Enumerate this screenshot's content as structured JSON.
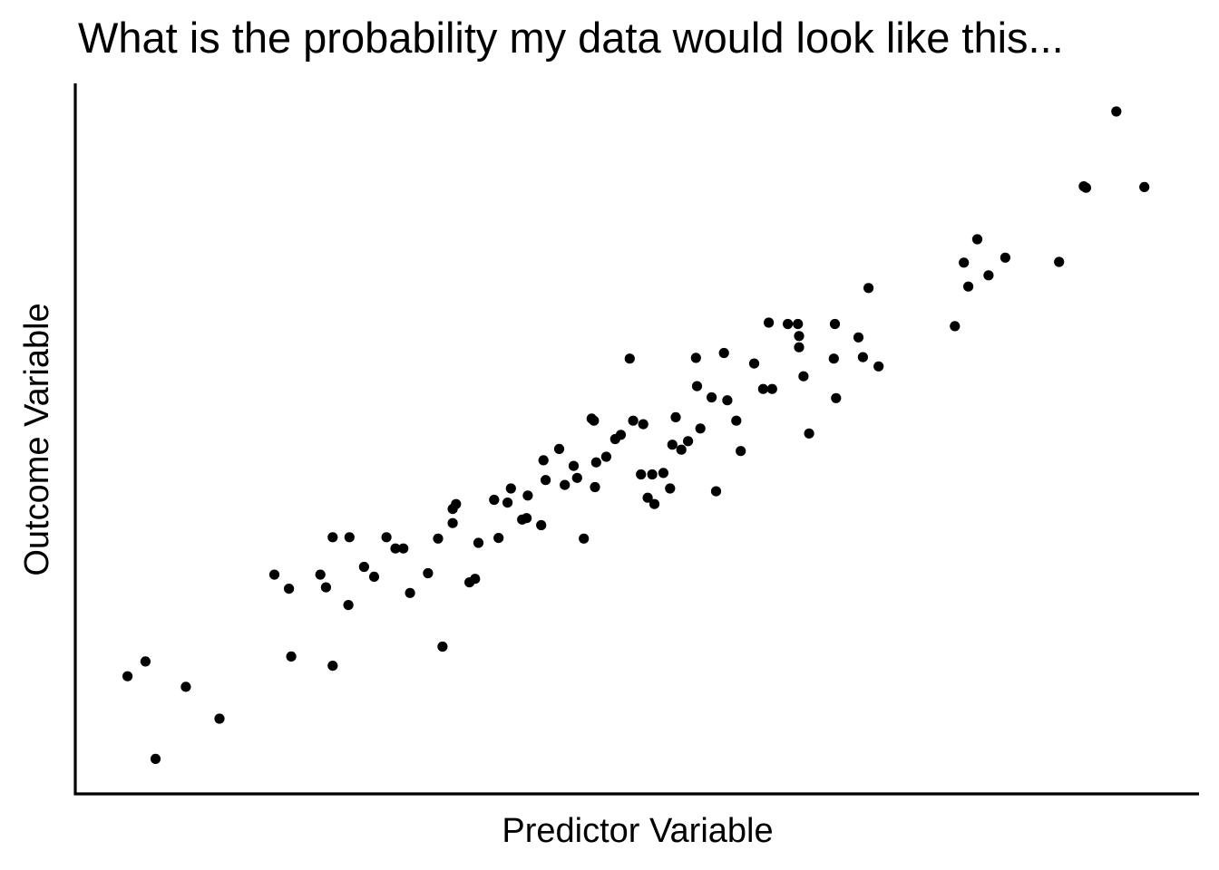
{
  "chart_data": {
    "type": "scatter",
    "title": "What is the probability my data would look like this...",
    "xlabel": "Predictor Variable",
    "ylabel": "Outcome Variable",
    "x_ticks_shown": false,
    "y_ticks_shown": false,
    "grid": false,
    "legend": "none",
    "point_color": "#000000",
    "axis_color": "#000000",
    "background": "#ffffff",
    "xlim": [
      0,
      100
    ],
    "ylim": [
      0,
      100
    ],
    "points": [
      {
        "x": 4.5,
        "y": 16.4
      },
      {
        "x": 6.1,
        "y": 18.5
      },
      {
        "x": 7.0,
        "y": 4.7
      },
      {
        "x": 9.7,
        "y": 14.9
      },
      {
        "x": 12.7,
        "y": 10.4
      },
      {
        "x": 17.6,
        "y": 30.8
      },
      {
        "x": 18.9,
        "y": 28.8
      },
      {
        "x": 19.1,
        "y": 19.2
      },
      {
        "x": 21.7,
        "y": 30.8
      },
      {
        "x": 22.2,
        "y": 29.0
      },
      {
        "x": 22.8,
        "y": 36.1
      },
      {
        "x": 22.8,
        "y": 17.9
      },
      {
        "x": 24.2,
        "y": 26.5
      },
      {
        "x": 24.3,
        "y": 36.1
      },
      {
        "x": 25.6,
        "y": 31.9
      },
      {
        "x": 26.5,
        "y": 30.5
      },
      {
        "x": 27.6,
        "y": 36.1
      },
      {
        "x": 28.4,
        "y": 34.5
      },
      {
        "x": 29.1,
        "y": 34.5
      },
      {
        "x": 29.7,
        "y": 28.2
      },
      {
        "x": 31.3,
        "y": 31.0
      },
      {
        "x": 32.2,
        "y": 35.9
      },
      {
        "x": 32.6,
        "y": 20.6
      },
      {
        "x": 33.5,
        "y": 40.1
      },
      {
        "x": 33.5,
        "y": 38.1
      },
      {
        "x": 33.8,
        "y": 40.8
      },
      {
        "x": 35.0,
        "y": 29.7
      },
      {
        "x": 35.5,
        "y": 30.2
      },
      {
        "x": 35.8,
        "y": 35.3
      },
      {
        "x": 37.2,
        "y": 41.4
      },
      {
        "x": 37.6,
        "y": 36.0
      },
      {
        "x": 38.4,
        "y": 41.0
      },
      {
        "x": 38.7,
        "y": 43.0
      },
      {
        "x": 39.7,
        "y": 38.6
      },
      {
        "x": 40.1,
        "y": 38.8
      },
      {
        "x": 40.2,
        "y": 42.0
      },
      {
        "x": 41.4,
        "y": 37.8
      },
      {
        "x": 41.6,
        "y": 47.0
      },
      {
        "x": 41.8,
        "y": 44.2
      },
      {
        "x": 43.0,
        "y": 48.6
      },
      {
        "x": 43.5,
        "y": 43.5
      },
      {
        "x": 44.3,
        "y": 46.2
      },
      {
        "x": 44.6,
        "y": 44.5
      },
      {
        "x": 45.2,
        "y": 35.9
      },
      {
        "x": 45.9,
        "y": 52.9
      },
      {
        "x": 46.1,
        "y": 52.6
      },
      {
        "x": 46.2,
        "y": 43.2
      },
      {
        "x": 46.3,
        "y": 46.7
      },
      {
        "x": 47.2,
        "y": 47.5
      },
      {
        "x": 48.0,
        "y": 50.0
      },
      {
        "x": 48.5,
        "y": 50.6
      },
      {
        "x": 49.3,
        "y": 61.4
      },
      {
        "x": 49.6,
        "y": 52.6
      },
      {
        "x": 50.3,
        "y": 45.0
      },
      {
        "x": 50.5,
        "y": 52.1
      },
      {
        "x": 50.9,
        "y": 41.7
      },
      {
        "x": 51.3,
        "y": 45.0
      },
      {
        "x": 51.5,
        "y": 40.8
      },
      {
        "x": 52.3,
        "y": 45.2
      },
      {
        "x": 52.9,
        "y": 43.0
      },
      {
        "x": 53.1,
        "y": 49.2
      },
      {
        "x": 53.4,
        "y": 53.1
      },
      {
        "x": 53.9,
        "y": 48.5
      },
      {
        "x": 54.5,
        "y": 49.7
      },
      {
        "x": 55.2,
        "y": 61.5
      },
      {
        "x": 55.3,
        "y": 57.5
      },
      {
        "x": 55.6,
        "y": 51.5
      },
      {
        "x": 56.6,
        "y": 55.9
      },
      {
        "x": 57.0,
        "y": 42.6
      },
      {
        "x": 57.7,
        "y": 62.2
      },
      {
        "x": 58.0,
        "y": 55.5
      },
      {
        "x": 58.8,
        "y": 52.6
      },
      {
        "x": 59.2,
        "y": 48.3
      },
      {
        "x": 60.4,
        "y": 60.7
      },
      {
        "x": 61.2,
        "y": 57.1
      },
      {
        "x": 61.7,
        "y": 66.5
      },
      {
        "x": 62.0,
        "y": 57.1
      },
      {
        "x": 63.4,
        "y": 66.3
      },
      {
        "x": 64.3,
        "y": 66.3
      },
      {
        "x": 64.4,
        "y": 64.6
      },
      {
        "x": 64.4,
        "y": 63.0
      },
      {
        "x": 64.8,
        "y": 58.9
      },
      {
        "x": 65.3,
        "y": 50.8
      },
      {
        "x": 67.5,
        "y": 61.4
      },
      {
        "x": 67.6,
        "y": 66.3
      },
      {
        "x": 67.7,
        "y": 55.8
      },
      {
        "x": 69.7,
        "y": 64.4
      },
      {
        "x": 70.1,
        "y": 61.6
      },
      {
        "x": 70.6,
        "y": 71.4
      },
      {
        "x": 71.5,
        "y": 60.3
      },
      {
        "x": 78.3,
        "y": 66.0
      },
      {
        "x": 79.1,
        "y": 75.0
      },
      {
        "x": 79.5,
        "y": 71.6
      },
      {
        "x": 80.3,
        "y": 78.3
      },
      {
        "x": 81.3,
        "y": 73.2
      },
      {
        "x": 82.8,
        "y": 75.7
      },
      {
        "x": 87.6,
        "y": 75.1
      },
      {
        "x": 89.8,
        "y": 85.8
      },
      {
        "x": 90.0,
        "y": 85.6
      },
      {
        "x": 92.7,
        "y": 96.4
      },
      {
        "x": 95.2,
        "y": 85.7
      }
    ]
  }
}
